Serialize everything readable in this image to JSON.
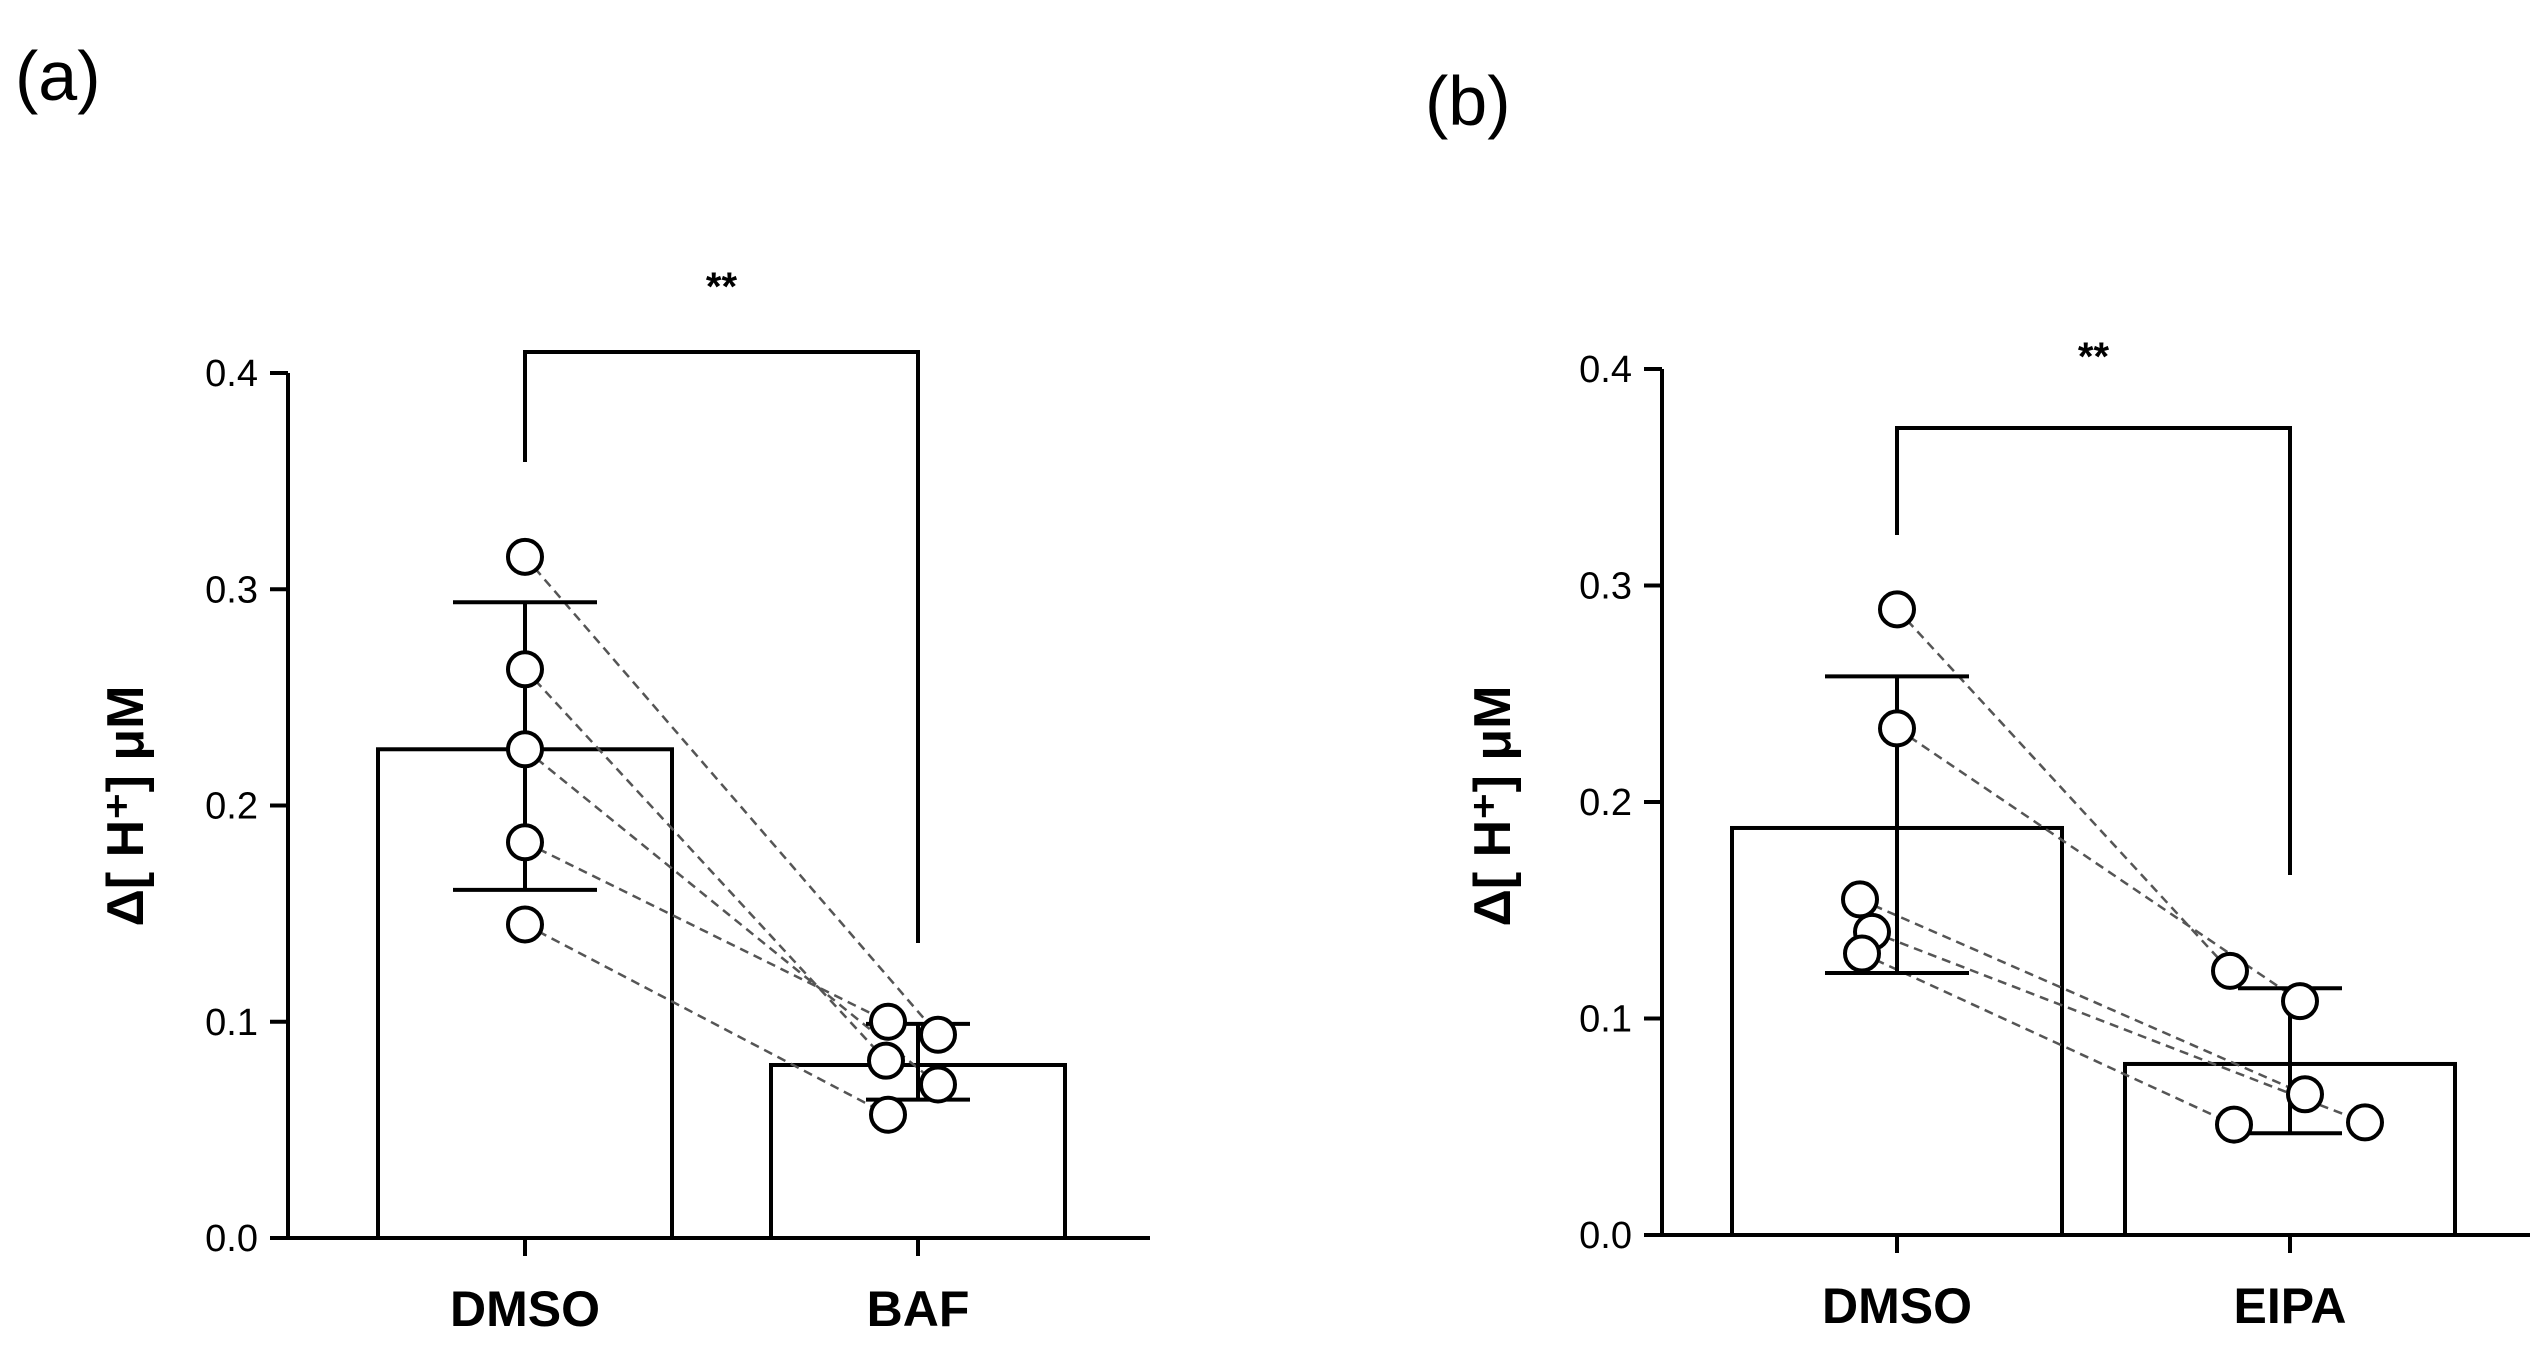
{
  "chart_data": [
    {
      "type": "bar",
      "panel_label": "(a)",
      "ylabel": "Δ[ H⁺] μM",
      "ylim": [
        0,
        0.4
      ],
      "yticks": [
        "0.0",
        "0.1",
        "0.2",
        "0.3",
        "0.4"
      ],
      "categories": [
        "DMSO",
        "BAF"
      ],
      "values": [
        0.226,
        0.08
      ],
      "error": [
        {
          "low": 0.161,
          "high": 0.294
        },
        {
          "low": 0.064,
          "high": 0.099
        }
      ],
      "paired_points": [
        [
          0.315,
          0.094
        ],
        [
          0.263,
          0.082
        ],
        [
          0.226,
          0.071
        ],
        [
          0.183,
          0.1
        ],
        [
          0.145,
          0.057
        ]
      ],
      "significance": "**",
      "grid": false
    },
    {
      "type": "bar",
      "panel_label": "(b)",
      "ylabel": "Δ[ H⁺] μM",
      "ylim": [
        0,
        0.4
      ],
      "yticks": [
        "0.0",
        "0.1",
        "0.2",
        "0.3",
        "0.4"
      ],
      "categories": [
        "DMSO",
        "EIPA"
      ],
      "values": [
        0.188,
        0.079
      ],
      "error": [
        {
          "low": 0.121,
          "high": 0.258
        },
        {
          "low": 0.047,
          "high": 0.114
        }
      ],
      "paired_points": [
        [
          0.289,
          0.122
        ],
        [
          0.234,
          0.108
        ],
        [
          0.155,
          0.065
        ],
        [
          0.14,
          0.052
        ],
        [
          0.13,
          0.051
        ]
      ],
      "significance": "**",
      "grid": false
    }
  ]
}
